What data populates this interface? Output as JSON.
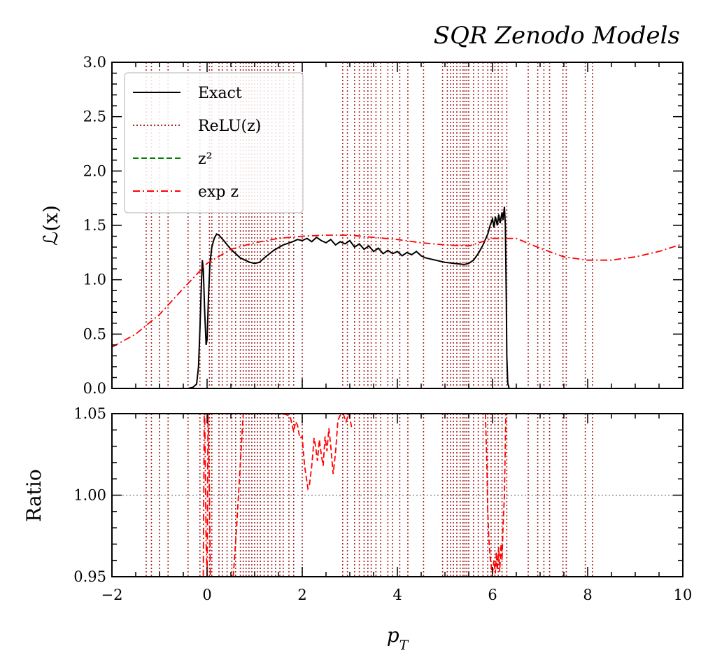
{
  "chart_data": {
    "type": "line",
    "title": "SQR Zenodo Models",
    "xlabel": "p_T",
    "xlim": [
      -2,
      10
    ],
    "x_ticks": [
      "−2",
      "0",
      "2",
      "4",
      "6",
      "8",
      "10"
    ],
    "x_tick_values": [
      -2,
      0,
      2,
      4,
      6,
      8,
      10
    ],
    "legend_position": "upper-left",
    "colors": {
      "exact": "#000000",
      "relu": "#a52a2a",
      "square": "#008000",
      "exp": "#ff0000",
      "ref": "#808080"
    },
    "main_panel": {
      "ylabel": "ℒ(x)",
      "ylim": [
        0,
        3
      ],
      "y_ticks": [
        "0.0",
        "0.5",
        "1.0",
        "1.5",
        "2.0",
        "2.5",
        "3.0"
      ],
      "y_tick_values": [
        0,
        0.5,
        1.0,
        1.5,
        2.0,
        2.5,
        3.0
      ],
      "series": [
        {
          "name": "Exact",
          "style": "solid",
          "x": [
            -0.4,
            -0.3,
            -0.22,
            -0.18,
            -0.15,
            -0.12,
            -0.1,
            -0.08,
            -0.05,
            -0.02,
            0.0,
            0.03,
            0.06,
            0.1,
            0.15,
            0.2,
            0.25,
            0.35,
            0.5,
            0.7,
            0.9,
            1.0,
            1.1,
            1.2,
            1.4,
            1.6,
            1.8,
            1.9,
            2.0,
            2.1,
            2.2,
            2.3,
            2.4,
            2.5,
            2.6,
            2.7,
            2.8,
            2.9,
            3.0,
            3.1,
            3.2,
            3.3,
            3.4,
            3.5,
            3.6,
            3.7,
            3.8,
            3.9,
            4.0,
            4.1,
            4.2,
            4.3,
            4.4,
            4.5,
            4.6,
            4.8,
            5.0,
            5.2,
            5.4,
            5.5,
            5.6,
            5.7,
            5.8,
            5.9,
            5.95,
            6.0,
            6.03,
            6.06,
            6.1,
            6.13,
            6.16,
            6.2,
            6.22,
            6.25,
            6.27,
            6.29,
            6.3,
            6.32,
            6.35,
            6.4
          ],
          "values": [
            0.0,
            0.01,
            0.04,
            0.2,
            0.55,
            0.95,
            1.18,
            1.1,
            0.7,
            0.4,
            0.45,
            0.85,
            1.15,
            1.3,
            1.38,
            1.42,
            1.41,
            1.36,
            1.28,
            1.2,
            1.16,
            1.15,
            1.16,
            1.2,
            1.27,
            1.32,
            1.35,
            1.37,
            1.36,
            1.38,
            1.35,
            1.39,
            1.36,
            1.34,
            1.37,
            1.32,
            1.35,
            1.33,
            1.36,
            1.3,
            1.33,
            1.28,
            1.31,
            1.26,
            1.29,
            1.24,
            1.27,
            1.24,
            1.26,
            1.22,
            1.25,
            1.23,
            1.26,
            1.22,
            1.2,
            1.18,
            1.16,
            1.15,
            1.14,
            1.15,
            1.18,
            1.24,
            1.32,
            1.42,
            1.5,
            1.56,
            1.48,
            1.58,
            1.5,
            1.6,
            1.52,
            1.62,
            1.55,
            1.67,
            1.5,
            0.8,
            0.3,
            0.05,
            0.0,
            0.0
          ]
        },
        {
          "name": "ReLU(z)",
          "style": "dotted",
          "vlines": [
            -1.28,
            -1.17,
            -1.0,
            -0.82,
            -0.4,
            -0.15,
            0.05,
            0.1,
            0.25,
            0.32,
            0.42,
            0.52,
            0.6,
            0.7,
            0.76,
            0.82,
            0.88,
            0.94,
            1.0,
            1.06,
            1.12,
            1.2,
            1.28,
            1.36,
            1.44,
            1.53,
            1.6,
            1.72,
            1.82,
            2.0,
            2.85,
            2.95,
            3.1,
            3.2,
            3.3,
            3.38,
            3.45,
            3.55,
            3.65,
            3.8,
            3.9,
            4.05,
            4.22,
            4.55,
            4.95,
            5.05,
            5.12,
            5.18,
            5.25,
            5.32,
            5.38,
            5.42,
            5.46,
            5.5,
            5.6,
            5.7,
            5.8,
            5.9,
            5.97,
            6.05,
            6.12,
            6.2,
            6.3,
            6.75,
            6.95,
            7.08,
            7.2,
            7.48,
            7.55,
            7.95,
            8.1
          ]
        },
        {
          "name": "z²",
          "style": "dashed",
          "x": [],
          "values": []
        },
        {
          "name": "exp z",
          "style": "dashdot",
          "x": [
            -2.0,
            -1.5,
            -1.0,
            -0.5,
            0.0,
            0.5,
            1.0,
            1.5,
            2.0,
            2.5,
            3.0,
            3.5,
            4.0,
            4.5,
            5.0,
            5.5,
            6.0,
            6.5,
            7.0,
            7.5,
            8.0,
            8.5,
            9.0,
            9.5,
            10.0
          ],
          "values": [
            0.38,
            0.5,
            0.68,
            0.92,
            1.15,
            1.28,
            1.34,
            1.38,
            1.4,
            1.41,
            1.41,
            1.39,
            1.37,
            1.34,
            1.32,
            1.31,
            1.38,
            1.38,
            1.29,
            1.21,
            1.18,
            1.18,
            1.21,
            1.26,
            1.33
          ]
        }
      ]
    },
    "ratio_panel": {
      "ylabel": "Ratio",
      "ylim": [
        0.95,
        1.05
      ],
      "y_ticks": [
        "0.95",
        "1.00",
        "1.05"
      ],
      "y_tick_values": [
        0.95,
        1.0,
        1.05
      ],
      "reference_line": 1.0,
      "series": [
        {
          "name": "exp z",
          "style": "dashdot",
          "x": [
            -0.08,
            -0.06,
            -0.05,
            -0.02,
            0.0,
            0.02,
            0.05,
            0.07
          ],
          "values": [
            0.95,
            1.05,
            1.05,
            0.97,
            0.95,
            1.05,
            1.0,
            0.95
          ]
        },
        {
          "name": "exp z",
          "style": "dashed",
          "x": [
            0.55,
            0.62,
            0.68,
            0.72,
            0.76
          ],
          "values": [
            0.95,
            0.98,
            1.01,
            1.03,
            1.05
          ]
        },
        {
          "name": "exp z",
          "style": "dashed",
          "x": [
            1.6,
            1.7,
            1.75,
            1.78,
            1.82,
            1.86,
            1.9,
            1.95,
            2.0,
            2.02,
            2.05,
            2.08,
            2.12,
            2.15,
            2.2,
            2.25,
            2.28,
            2.32,
            2.36,
            2.4,
            2.44,
            2.48,
            2.52,
            2.56,
            2.6,
            2.65,
            2.7,
            2.75,
            2.8,
            2.86,
            2.92,
            2.98,
            3.05
          ],
          "values": [
            1.05,
            1.049,
            1.048,
            1.044,
            1.039,
            1.045,
            1.043,
            1.035,
            1.036,
            1.028,
            1.018,
            1.012,
            1.004,
            1.006,
            1.018,
            1.035,
            1.03,
            1.021,
            1.034,
            1.025,
            1.018,
            1.036,
            1.027,
            1.041,
            1.03,
            1.013,
            1.026,
            1.046,
            1.049,
            1.05,
            1.045,
            1.05,
            1.04
          ]
        },
        {
          "name": "exp z",
          "style": "dashed",
          "x": [
            5.85,
            5.88,
            5.9,
            5.92,
            5.95,
            5.98,
            6.0,
            6.03,
            6.06,
            6.08,
            6.1,
            6.13,
            6.15,
            6.18,
            6.2,
            6.22,
            6.25,
            6.28
          ],
          "values": [
            1.05,
            1.02,
            0.99,
            0.975,
            0.962,
            0.955,
            0.952,
            0.96,
            0.952,
            0.965,
            0.954,
            0.968,
            0.953,
            0.97,
            0.96,
            0.98,
            1.0,
            1.05
          ]
        }
      ]
    }
  }
}
